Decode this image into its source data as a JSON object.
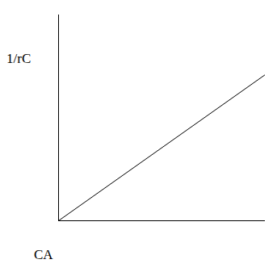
{
  "chart_data": {
    "type": "line",
    "xlabel": "CA",
    "ylabel": "1/rC",
    "x": [
      0,
      1
    ],
    "values": [
      0,
      0.71
    ],
    "color": "#000000",
    "xlim": [
      0,
      1
    ],
    "ylim": [
      0,
      1
    ],
    "xticks": [],
    "yticks": [],
    "tick_labels": false,
    "grid": false
  }
}
